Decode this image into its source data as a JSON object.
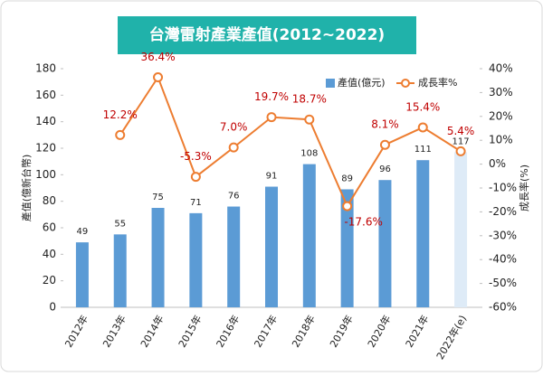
{
  "chart_data": {
    "type": "bar-line",
    "title": "台灣雷射產業產值(2012~2022)",
    "y_label": "產值(億新台幣)",
    "y2_label": "成長率(%)",
    "categories": [
      "2012年",
      "2013年",
      "2014年",
      "2015年",
      "2016年",
      "2017年",
      "2018年",
      "2019年",
      "2020年",
      "2021年",
      "2022年(e)"
    ],
    "series": [
      {
        "name": "產值(億元)",
        "type": "bar",
        "color": "#5b9bd5",
        "colors": [
          "#5b9bd5",
          "#5b9bd5",
          "#5b9bd5",
          "#5b9bd5",
          "#5b9bd5",
          "#5b9bd5",
          "#5b9bd5",
          "#5b9bd5",
          "#5b9bd5",
          "#5b9bd5",
          "#deebf7"
        ],
        "values": [
          49,
          55,
          75,
          71,
          76,
          91,
          108,
          89,
          96,
          111,
          117
        ]
      },
      {
        "name": "成長率%",
        "type": "line",
        "axis": "y2",
        "color": "#ed7d31",
        "values": [
          null,
          12.2,
          36.4,
          -5.3,
          7.0,
          19.7,
          18.7,
          -17.6,
          8.1,
          15.4,
          5.4
        ],
        "value_labels": [
          null,
          "12.2%",
          "36.4%",
          "-5.3%",
          "7.0%",
          "19.7%",
          "18.7%",
          "-17.6%",
          "8.1%",
          "15.4%",
          "5.4%"
        ],
        "label_color": "#c00000"
      }
    ],
    "ylim": [
      0,
      180
    ],
    "yticks": [
      0,
      20,
      40,
      60,
      80,
      100,
      120,
      140,
      160,
      180
    ],
    "y2lim": [
      -60,
      40
    ],
    "y2ticks": [
      {
        "value": -60,
        "label": "-60%"
      },
      {
        "value": -50,
        "label": "-50%"
      },
      {
        "value": -40,
        "label": "-40%"
      },
      {
        "value": -30,
        "label": "-30%"
      },
      {
        "value": -20,
        "label": "-20%"
      },
      {
        "value": -10,
        "label": "-10%"
      },
      {
        "value": 0,
        "label": "0%"
      },
      {
        "value": 10,
        "label": "10%"
      },
      {
        "value": 20,
        "label": "20%"
      },
      {
        "value": 30,
        "label": "30%"
      },
      {
        "value": 40,
        "label": "40%"
      }
    ],
    "legend": "top-right"
  }
}
